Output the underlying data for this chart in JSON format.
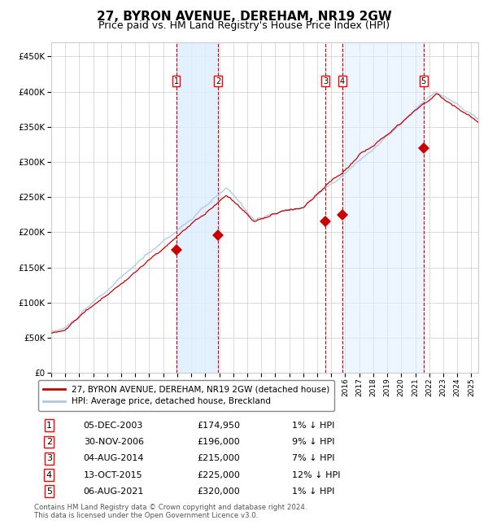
{
  "title": "27, BYRON AVENUE, DEREHAM, NR19 2GW",
  "subtitle": "Price paid vs. HM Land Registry's House Price Index (HPI)",
  "ylim": [
    0,
    470000
  ],
  "yticks": [
    0,
    50000,
    100000,
    150000,
    200000,
    250000,
    300000,
    350000,
    400000,
    450000
  ],
  "xlim_start": 1995.0,
  "xlim_end": 2025.5,
  "sale_dates": [
    2003.92,
    2006.91,
    2014.59,
    2015.79,
    2021.59
  ],
  "sale_prices": [
    174950,
    196000,
    215000,
    225000,
    320000
  ],
  "sale_labels": [
    "1",
    "2",
    "3",
    "4",
    "5"
  ],
  "sale_label_dates": [
    "05-DEC-2003",
    "30-NOV-2006",
    "04-AUG-2014",
    "13-OCT-2015",
    "06-AUG-2021"
  ],
  "sale_label_prices": [
    "£174,950",
    "£196,000",
    "£215,000",
    "£225,000",
    "£320,000"
  ],
  "sale_label_hpi": [
    "1% ↓ HPI",
    "9% ↓ HPI",
    "7% ↓ HPI",
    "12% ↓ HPI",
    "1% ↓ HPI"
  ],
  "hpi_line_color": "#aac8e8",
  "price_line_color": "#cc0000",
  "marker_color": "#cc0000",
  "dashed_line_color": "#cc0000",
  "shade_color": "#ddeeff",
  "background_color": "#ffffff",
  "grid_color": "#cccccc",
  "title_fontsize": 11,
  "subtitle_fontsize": 9,
  "footer_text": "Contains HM Land Registry data © Crown copyright and database right 2024.\nThis data is licensed under the Open Government Licence v3.0.",
  "legend_entry1": "27, BYRON AVENUE, DEREHAM, NR19 2GW (detached house)",
  "legend_entry2": "HPI: Average price, detached house, Breckland"
}
